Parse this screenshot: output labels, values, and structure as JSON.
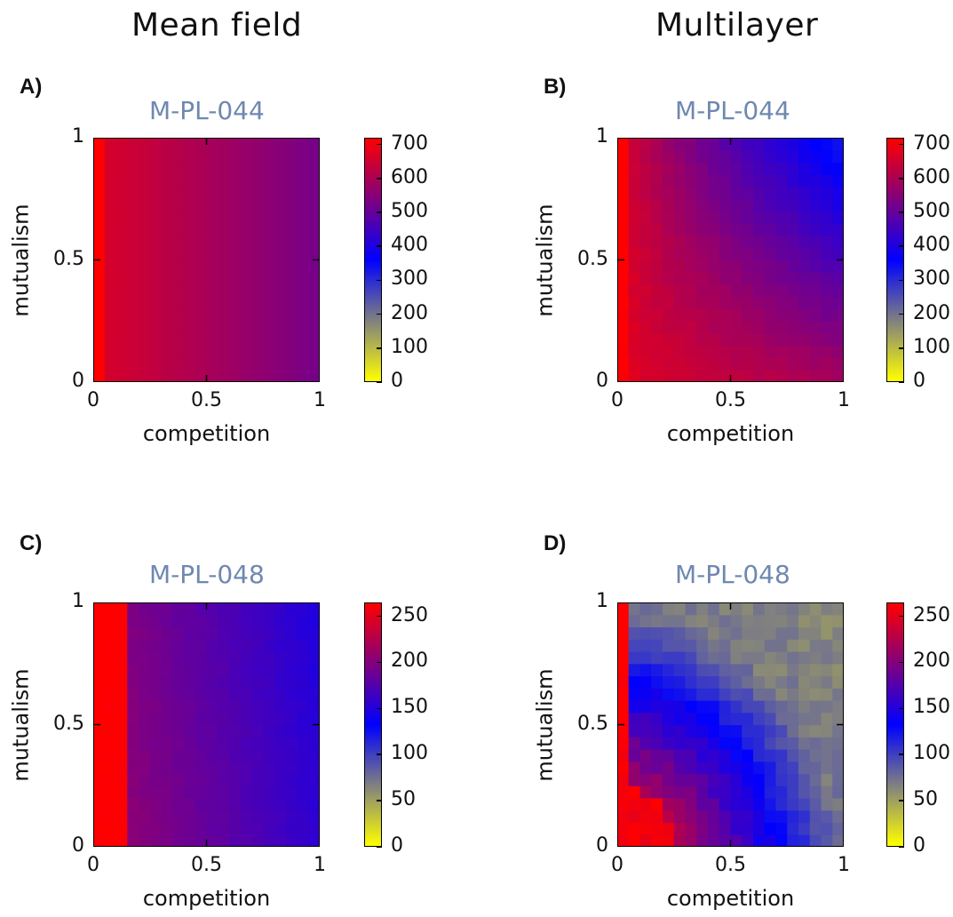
{
  "column_titles": {
    "left": "Mean field",
    "right": "Multilayer"
  },
  "chart_data": [
    {
      "type": "heatmap",
      "panel_label": "A)",
      "title": "M-PL-044",
      "xlabel": "competition",
      "ylabel": "mutualism",
      "xlim": [
        0,
        1
      ],
      "ylim": [
        0,
        1
      ],
      "x_ticks": [
        "0",
        "0.5",
        "1"
      ],
      "y_ticks": [
        "0",
        "0.5",
        "1"
      ],
      "colorbar": {
        "min": 0,
        "max": 720,
        "ticks": [
          "0",
          "100",
          "200",
          "300",
          "400",
          "500",
          "600",
          "700"
        ]
      },
      "grid_size": 20,
      "model": "A"
    },
    {
      "type": "heatmap",
      "panel_label": "B)",
      "title": "M-PL-044",
      "xlabel": "competition",
      "ylabel": "mutualism",
      "xlim": [
        0,
        1
      ],
      "ylim": [
        0,
        1
      ],
      "x_ticks": [
        "0",
        "0.5",
        "1"
      ],
      "y_ticks": [
        "0",
        "0.5",
        "1"
      ],
      "colorbar": {
        "min": 0,
        "max": 720,
        "ticks": [
          "0",
          "100",
          "200",
          "300",
          "400",
          "500",
          "600",
          "700"
        ]
      },
      "grid_size": 20,
      "model": "B"
    },
    {
      "type": "heatmap",
      "panel_label": "C)",
      "title": "M-PL-048",
      "xlabel": "competition",
      "ylabel": "mutualism",
      "xlim": [
        0,
        1
      ],
      "ylim": [
        0,
        1
      ],
      "x_ticks": [
        "0",
        "0.5",
        "1"
      ],
      "y_ticks": [
        "0",
        "0.5",
        "1"
      ],
      "colorbar": {
        "min": 0,
        "max": 265,
        "ticks": [
          "0",
          "50",
          "100",
          "150",
          "200",
          "250"
        ]
      },
      "grid_size": 20,
      "model": "C"
    },
    {
      "type": "heatmap",
      "panel_label": "D)",
      "title": "M-PL-048",
      "xlabel": "competition",
      "ylabel": "mutualism",
      "xlim": [
        0,
        1
      ],
      "ylim": [
        0,
        1
      ],
      "x_ticks": [
        "0",
        "0.5",
        "1"
      ],
      "y_ticks": [
        "0",
        "0.5",
        "1"
      ],
      "colorbar": {
        "min": 0,
        "max": 265,
        "ticks": [
          "0",
          "50",
          "100",
          "150",
          "200",
          "250"
        ]
      },
      "grid_size": 20,
      "model": "D"
    }
  ],
  "colormap": [
    "#ffff00",
    "#808080",
    "#0000ff",
    "#800080",
    "#ff0000"
  ]
}
